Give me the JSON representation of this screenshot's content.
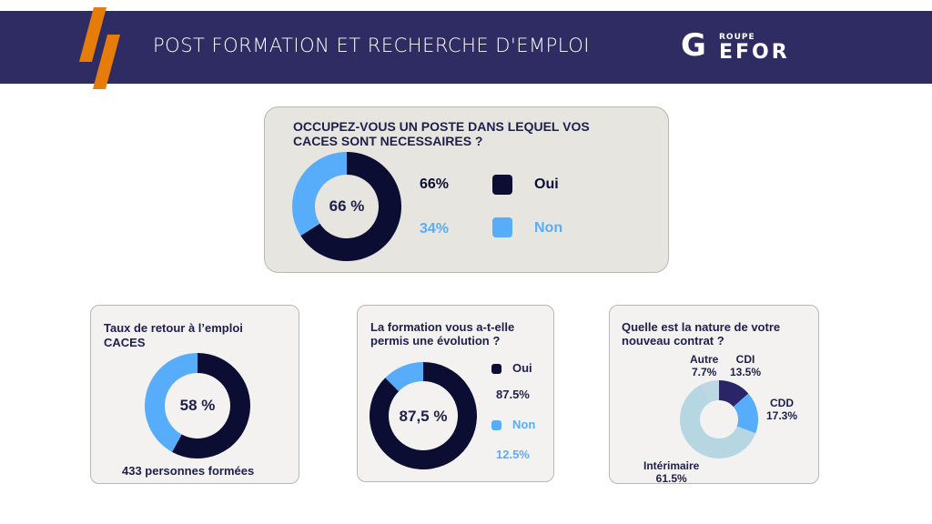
{
  "header": {
    "title": "POST FORMATION ET RECHERCHE D'EMPLOI",
    "logo_small": "ROUPE",
    "logo_g": "G",
    "logo_main": "EFOR"
  },
  "colors": {
    "dark": "#0b0d33",
    "light": "#58adfb",
    "navy": "#2a2566",
    "pale": "#b6d6e1"
  },
  "chart_data": [
    {
      "type": "pie",
      "title": "OCCUPEZ-VOUS UN POSTE DANS LEQUEL VOS CACES SONT NECESSAIRES ?",
      "center_label": "66 %",
      "categories": [
        "Oui",
        "Non"
      ],
      "values": [
        66,
        34
      ],
      "value_labels": [
        "66%",
        "34%"
      ]
    },
    {
      "type": "pie",
      "title": "Taux de retour à l’emploi CACES",
      "center_label": "58 %",
      "values": [
        58,
        42
      ],
      "footer": "433 personnes formées"
    },
    {
      "type": "pie",
      "title": "La formation vous a-t-elle permis une évolution ?",
      "center_label": "87,5 %",
      "categories": [
        "Oui",
        "Non"
      ],
      "values": [
        87.5,
        12.5
      ],
      "value_labels": [
        "87.5%",
        "12.5%"
      ]
    },
    {
      "type": "pie",
      "title": "Quelle est la nature de votre nouveau contrat ?",
      "categories": [
        "CDI",
        "CDD",
        "Intérimaire",
        "Autre"
      ],
      "values": [
        13.5,
        17.3,
        61.5,
        7.7
      ],
      "value_labels": [
        "13.5%",
        "17.3%",
        "61.5%",
        "7.7%"
      ]
    }
  ]
}
